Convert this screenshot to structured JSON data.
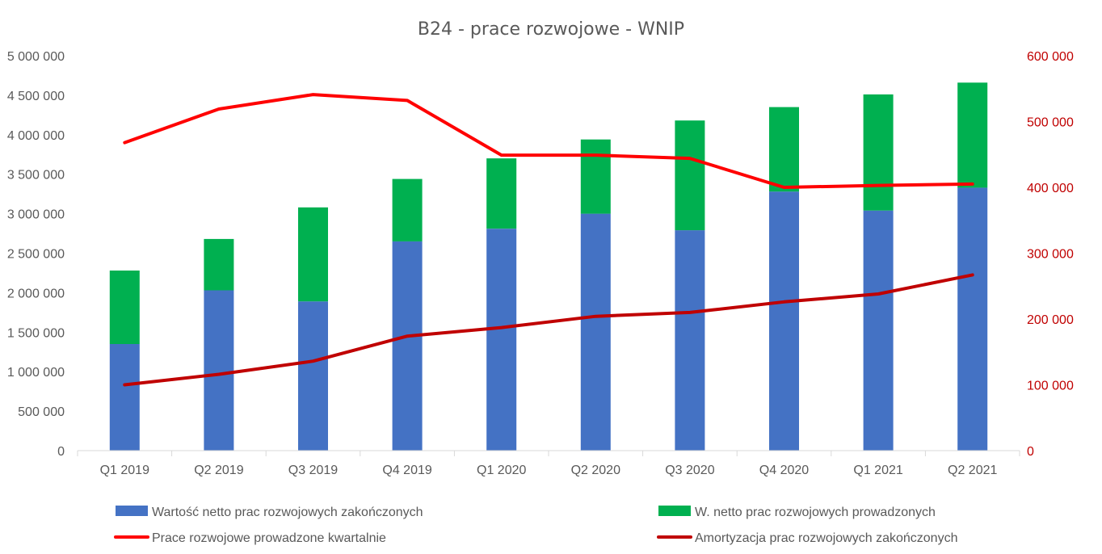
{
  "chart_data": {
    "type": "bar",
    "title": "B24 - prace rozwojowe - WNIP",
    "categories": [
      "Q1 2019",
      "Q2 2019",
      "Q3 2019",
      "Q4 2019",
      "Q1 2020",
      "Q2 2020",
      "Q3 2020",
      "Q4 2020",
      "Q1 2021",
      "Q2 2021"
    ],
    "y_left": {
      "ylim": [
        0,
        5000000
      ],
      "ticks": [
        0,
        500000,
        1000000,
        1500000,
        2000000,
        2500000,
        3000000,
        3500000,
        4000000,
        4500000,
        5000000
      ],
      "tick_labels": [
        "0",
        "500 000",
        "1 000 000",
        "1 500 000",
        "2 000 000",
        "2 500 000",
        "3 000 000",
        "3 500 000",
        "4 000 000",
        "4 500 000",
        "5 000 000"
      ]
    },
    "y_right": {
      "ylim": [
        0,
        600000
      ],
      "ticks": [
        0,
        100000,
        200000,
        300000,
        400000,
        500000,
        600000
      ],
      "tick_labels": [
        "0",
        "100 000",
        "200 000",
        "300 000",
        "400 000",
        "500 000",
        "600 000"
      ]
    },
    "series": [
      {
        "name": "Wartość netto prac rozwojowych zakończonych",
        "type": "bar-stacked",
        "axis": "left",
        "color": "#4472c4",
        "values": [
          1350000,
          2030000,
          1890000,
          2650000,
          2810000,
          3000000,
          2790000,
          3280000,
          3040000,
          3330000
        ]
      },
      {
        "name": "W. netto prac rozwojowych prowadzonych",
        "type": "bar-stacked",
        "axis": "left",
        "color": "#00b050",
        "values": [
          930000,
          650000,
          1190000,
          790000,
          890000,
          940000,
          1390000,
          1070000,
          1470000,
          1330000
        ]
      },
      {
        "name": "Prace rozwojowe prowadzone kwartalnie",
        "type": "line",
        "axis": "right",
        "color": "#ff0000",
        "values": [
          468000,
          519000,
          541000,
          532000,
          449000,
          449000,
          444000,
          400000,
          403000,
          405000
        ]
      },
      {
        "name": "Amortyzacja prac rozwojowych zakończonych",
        "type": "line",
        "axis": "right",
        "color": "#c00000",
        "values": [
          100000,
          116000,
          136000,
          174000,
          187000,
          204000,
          210000,
          226000,
          238000,
          267000
        ]
      }
    ],
    "legend": "bottom",
    "grid": false
  }
}
